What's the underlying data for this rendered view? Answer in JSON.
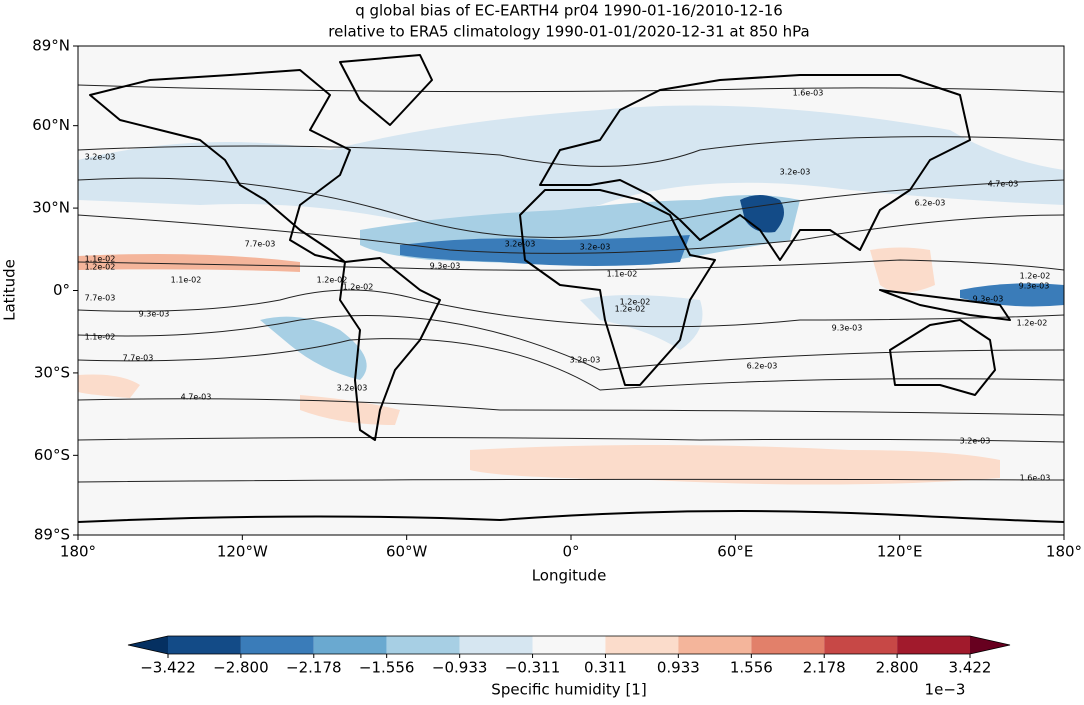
{
  "chart_data": {
    "type": "contour_map",
    "title": [
      "q global bias of EC-EARTH4 pr04 1990-01-16/2010-12-16",
      "relative to ERA5 climatology 1990-01-01/2020-12-31 at 850 hPa"
    ],
    "xlabel": "Longitude",
    "ylabel": "Latitude",
    "xlim": [
      -180,
      180
    ],
    "ylim": [
      -89,
      89
    ],
    "xticks": [
      {
        "value": -180,
        "label": "180°"
      },
      {
        "value": -120,
        "label": "120°W"
      },
      {
        "value": -60,
        "label": "60°W"
      },
      {
        "value": 0,
        "label": "0°"
      },
      {
        "value": 60,
        "label": "60°E"
      },
      {
        "value": 120,
        "label": "120°E"
      },
      {
        "value": 180,
        "label": "180°"
      }
    ],
    "yticks": [
      {
        "value": -89,
        "label": "89°S"
      },
      {
        "value": -60,
        "label": "60°S"
      },
      {
        "value": -30,
        "label": "30°S"
      },
      {
        "value": 0,
        "label": "0°"
      },
      {
        "value": 30,
        "label": "30°N"
      },
      {
        "value": 60,
        "label": "60°N"
      },
      {
        "value": 89,
        "label": "89°N"
      }
    ],
    "colorbar": {
      "label": "Specific humidity [1]",
      "scale_label": "1e−3",
      "extend": "both",
      "ticks": [
        {
          "value": -3.422,
          "label": "−3.422"
        },
        {
          "value": -2.8,
          "label": "−2.800"
        },
        {
          "value": -2.178,
          "label": "−2.178"
        },
        {
          "value": -1.556,
          "label": "−1.556"
        },
        {
          "value": -0.933,
          "label": "−0.933"
        },
        {
          "value": -0.311,
          "label": "−0.311"
        },
        0.311,
        0.933,
        1.556,
        2.178,
        {
          "value": 2.8,
          "label": "2.800"
        },
        3.422
      ],
      "colors": [
        "#134b87",
        "#3a7cb9",
        "#6aa9d0",
        "#a7cfe4",
        "#d6e6f1",
        "#f7f7f7",
        "#fbdccb",
        "#f4b59b",
        "#e2806a",
        "#c74846",
        "#a11a2c"
      ],
      "under_color": "#053061",
      "over_color": "#67001f"
    },
    "contour_labels": [
      "1.6e-03",
      "3.2e-03",
      "3.2e-03",
      "3.2e-03",
      "3.2e-03",
      "4.7e-03",
      "6.2e-03",
      "7.7e-03",
      "9.3e-03",
      "1.1e-02",
      "1.2e-02",
      "1.1e-02",
      "1.2e-02",
      "1.2e-02",
      "1.2e-02",
      "9.3e-03",
      "1.2e-02",
      "7.7e-03",
      "1.1e-02",
      "9.3e-03",
      "7.7e-03",
      "4.7e-03",
      "3.2e-03",
      "3.2e-03",
      "1.2e-02",
      "1.1e-02",
      "9.3e-03",
      "6.2e-03",
      "3.2e-03",
      "1.6e-03",
      "1.2e-02",
      "9.3e-03"
    ]
  }
}
